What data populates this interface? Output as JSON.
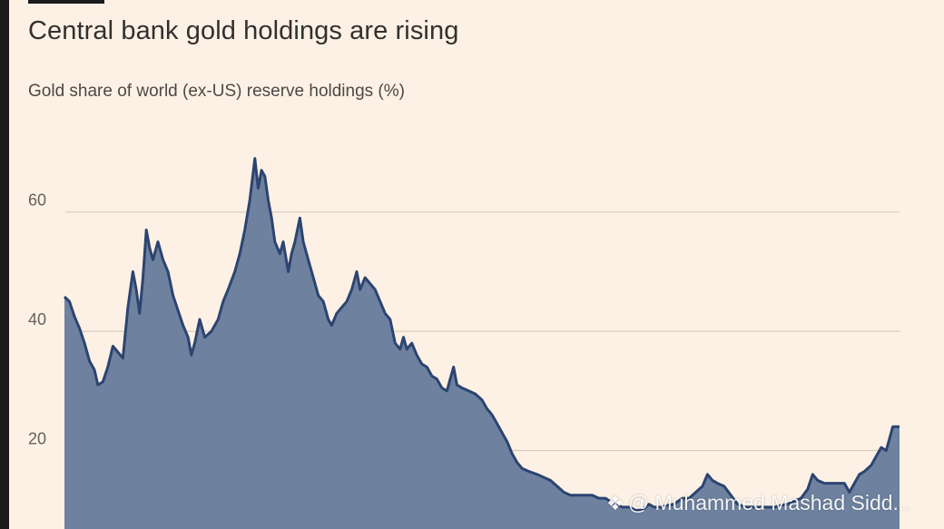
{
  "header": {
    "title": "Central bank gold holdings are rising",
    "subtitle": "Gold share of world (ex-US) reserve holdings (%)"
  },
  "watermark": {
    "logo_icon": "binance-diamond-icon",
    "text": "@ Muhammed Mashad Sidd..."
  },
  "colors": {
    "background": "#fdf1e5",
    "area_fill": "#6e82a0",
    "line": "#2c4470",
    "gridline": "#d9cdc0"
  },
  "chart_data": {
    "type": "area",
    "title": "Central bank gold holdings are rising",
    "subtitle": "Gold share of world (ex-US) reserve holdings (%)",
    "xlabel": "",
    "ylabel": "",
    "x_range": [
      0,
      1
    ],
    "ylim": [
      4,
      70
    ],
    "y_ticks": [
      20,
      40,
      60
    ],
    "y_tick_labels": [
      "20",
      "40",
      "60"
    ],
    "grid": true,
    "series": [
      {
        "name": "Gold share (%)",
        "points": [
          [
            0.0,
            45.8
          ],
          [
            0.006,
            45.0
          ],
          [
            0.012,
            42.5
          ],
          [
            0.018,
            40.5
          ],
          [
            0.024,
            38.0
          ],
          [
            0.03,
            35.0
          ],
          [
            0.036,
            33.5
          ],
          [
            0.04,
            31.0
          ],
          [
            0.046,
            31.5
          ],
          [
            0.052,
            34.0
          ],
          [
            0.058,
            37.5
          ],
          [
            0.064,
            36.5
          ],
          [
            0.07,
            35.5
          ],
          [
            0.076,
            44.0
          ],
          [
            0.082,
            50.0
          ],
          [
            0.086,
            47.0
          ],
          [
            0.09,
            43.0
          ],
          [
            0.094,
            49.0
          ],
          [
            0.098,
            57.0
          ],
          [
            0.102,
            54.0
          ],
          [
            0.106,
            52.0
          ],
          [
            0.112,
            55.0
          ],
          [
            0.118,
            52.0
          ],
          [
            0.124,
            50.0
          ],
          [
            0.13,
            46.0
          ],
          [
            0.136,
            43.5
          ],
          [
            0.142,
            41.0
          ],
          [
            0.148,
            39.0
          ],
          [
            0.152,
            36.0
          ],
          [
            0.156,
            38.0
          ],
          [
            0.162,
            42.0
          ],
          [
            0.168,
            39.0
          ],
          [
            0.176,
            40.0
          ],
          [
            0.184,
            42.0
          ],
          [
            0.19,
            45.0
          ],
          [
            0.196,
            47.0
          ],
          [
            0.204,
            50.0
          ],
          [
            0.21,
            53.0
          ],
          [
            0.216,
            57.0
          ],
          [
            0.222,
            62.0
          ],
          [
            0.228,
            69.0
          ],
          [
            0.232,
            64.0
          ],
          [
            0.236,
            67.0
          ],
          [
            0.24,
            66.0
          ],
          [
            0.244,
            62.0
          ],
          [
            0.248,
            59.0
          ],
          [
            0.252,
            55.0
          ],
          [
            0.258,
            53.0
          ],
          [
            0.262,
            55.0
          ],
          [
            0.268,
            50.0
          ],
          [
            0.272,
            53.0
          ],
          [
            0.276,
            55.0
          ],
          [
            0.282,
            59.0
          ],
          [
            0.286,
            55.0
          ],
          [
            0.292,
            52.0
          ],
          [
            0.298,
            49.0
          ],
          [
            0.304,
            46.0
          ],
          [
            0.31,
            45.0
          ],
          [
            0.316,
            42.0
          ],
          [
            0.32,
            41.0
          ],
          [
            0.326,
            43.0
          ],
          [
            0.332,
            44.0
          ],
          [
            0.338,
            45.0
          ],
          [
            0.344,
            47.0
          ],
          [
            0.35,
            50.0
          ],
          [
            0.354,
            47.0
          ],
          [
            0.36,
            49.0
          ],
          [
            0.366,
            48.0
          ],
          [
            0.372,
            47.0
          ],
          [
            0.378,
            45.0
          ],
          [
            0.384,
            43.0
          ],
          [
            0.39,
            42.0
          ],
          [
            0.396,
            38.0
          ],
          [
            0.402,
            37.0
          ],
          [
            0.406,
            39.0
          ],
          [
            0.41,
            37.0
          ],
          [
            0.416,
            38.0
          ],
          [
            0.422,
            36.0
          ],
          [
            0.428,
            34.5
          ],
          [
            0.434,
            34.0
          ],
          [
            0.44,
            32.5
          ],
          [
            0.446,
            32.0
          ],
          [
            0.452,
            30.5
          ],
          [
            0.458,
            30.0
          ],
          [
            0.462,
            32.0
          ],
          [
            0.466,
            34.0
          ],
          [
            0.47,
            31.0
          ],
          [
            0.476,
            30.5
          ],
          [
            0.484,
            30.0
          ],
          [
            0.492,
            29.5
          ],
          [
            0.5,
            28.5
          ],
          [
            0.506,
            27.0
          ],
          [
            0.512,
            26.0
          ],
          [
            0.518,
            24.5
          ],
          [
            0.524,
            23.0
          ],
          [
            0.53,
            21.5
          ],
          [
            0.536,
            19.5
          ],
          [
            0.542,
            18.0
          ],
          [
            0.548,
            17.0
          ],
          [
            0.556,
            16.5
          ],
          [
            0.566,
            16.0
          ],
          [
            0.574,
            15.5
          ],
          [
            0.582,
            15.0
          ],
          [
            0.59,
            14.0
          ],
          [
            0.598,
            13.0
          ],
          [
            0.606,
            12.5
          ],
          [
            0.614,
            12.5
          ],
          [
            0.624,
            12.5
          ],
          [
            0.632,
            12.5
          ],
          [
            0.64,
            12.0
          ],
          [
            0.648,
            12.0
          ],
          [
            0.658,
            11.0
          ],
          [
            0.668,
            10.5
          ],
          [
            0.676,
            10.5
          ],
          [
            0.684,
            10.0
          ],
          [
            0.692,
            10.0
          ],
          [
            0.7,
            11.0
          ],
          [
            0.706,
            10.5
          ],
          [
            0.714,
            10.5
          ],
          [
            0.722,
            10.8
          ],
          [
            0.73,
            11.0
          ],
          [
            0.74,
            12.0
          ],
          [
            0.748,
            12.0
          ],
          [
            0.756,
            13.0
          ],
          [
            0.764,
            14.0
          ],
          [
            0.77,
            16.0
          ],
          [
            0.776,
            15.0
          ],
          [
            0.782,
            14.5
          ],
          [
            0.79,
            14.0
          ],
          [
            0.798,
            12.5
          ],
          [
            0.806,
            11.0
          ],
          [
            0.816,
            10.5
          ],
          [
            0.826,
            10.5
          ],
          [
            0.834,
            10.5
          ],
          [
            0.842,
            10.5
          ],
          [
            0.85,
            10.5
          ],
          [
            0.858,
            10.8
          ],
          [
            0.866,
            11.0
          ],
          [
            0.874,
            11.5
          ],
          [
            0.882,
            12.0
          ],
          [
            0.89,
            13.5
          ],
          [
            0.896,
            16.0
          ],
          [
            0.902,
            15.0
          ],
          [
            0.91,
            14.5
          ],
          [
            0.918,
            14.5
          ],
          [
            0.926,
            14.5
          ],
          [
            0.934,
            14.5
          ],
          [
            0.94,
            13.0
          ],
          [
            0.946,
            14.5
          ],
          [
            0.952,
            16.0
          ],
          [
            0.958,
            16.5
          ],
          [
            0.966,
            17.5
          ],
          [
            0.972,
            19.0
          ],
          [
            0.978,
            20.5
          ],
          [
            0.984,
            20.0
          ],
          [
            0.988,
            22.0
          ],
          [
            0.992,
            24.0
          ],
          [
            0.996,
            24.0
          ],
          [
            1.0,
            24.0
          ]
        ]
      }
    ]
  }
}
